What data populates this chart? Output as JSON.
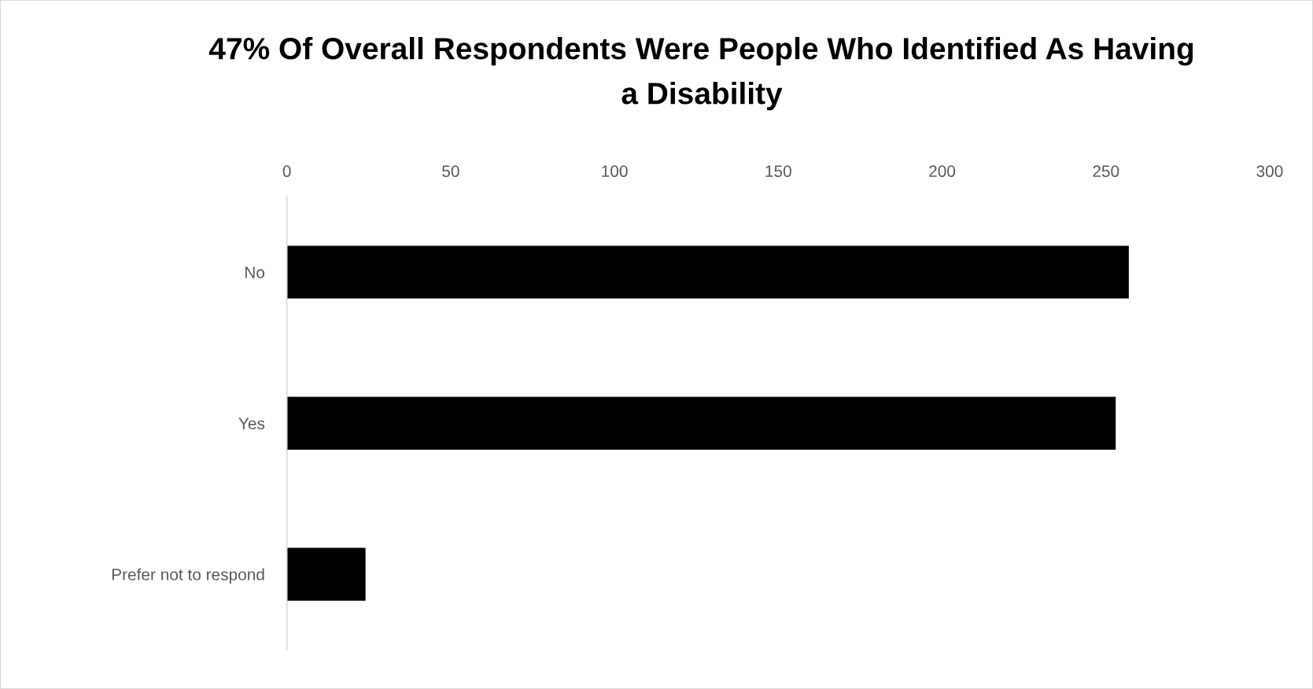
{
  "chart_data": {
    "type": "bar",
    "orientation": "horizontal",
    "title": "47% Of Overall Respondents Were People Who Identified As Having a Disability",
    "categories": [
      "No",
      "Yes",
      "Prefer not to respond"
    ],
    "values": [
      257,
      253,
      24
    ],
    "color": "#000000",
    "xlim": [
      0,
      300
    ],
    "xticks": [
      0,
      50,
      100,
      150,
      200,
      250,
      300
    ],
    "grid": false
  }
}
